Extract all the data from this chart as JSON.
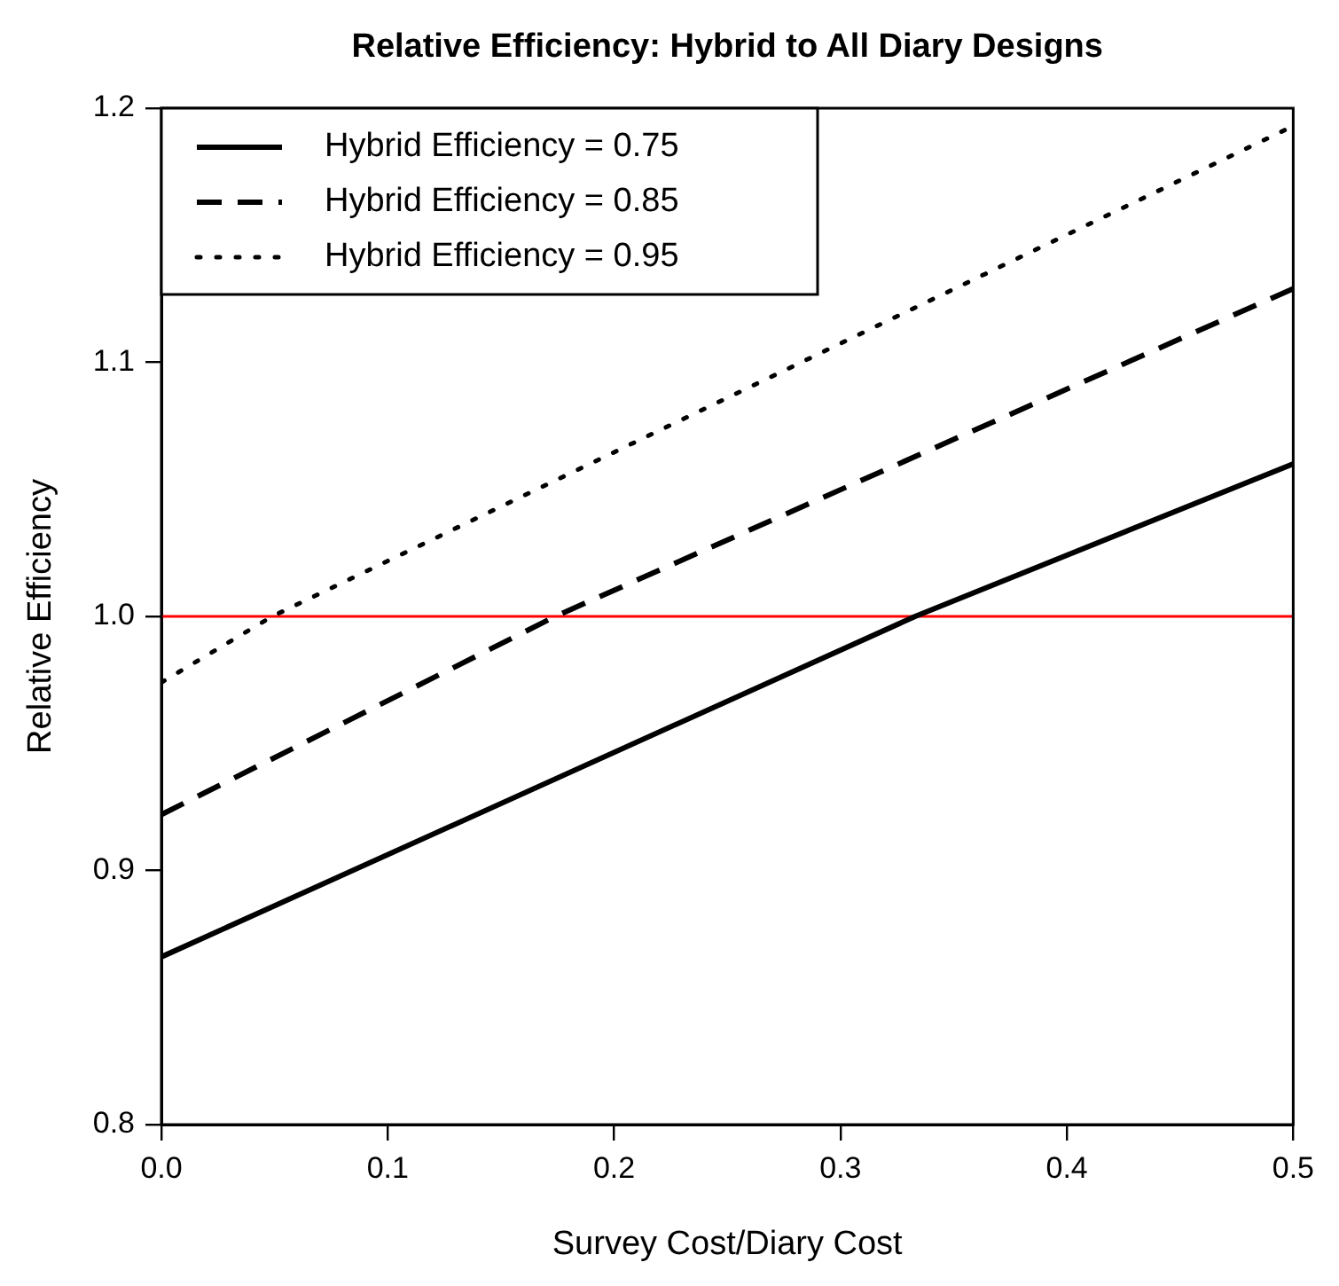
{
  "chart_data": {
    "type": "line",
    "title": "Relative Efficiency: Hybrid to All Diary Designs",
    "xlabel": "Survey Cost/Diary Cost",
    "ylabel": "Relative Efficiency",
    "series": [
      {
        "name": "Hybrid Efficiency = 0.75",
        "color": "#000000",
        "line_style": "solid",
        "x": [
          0,
          0.333,
          0.5
        ],
        "values": [
          0.866,
          1.0,
          1.06
        ]
      },
      {
        "name": "Hybrid Efficiency = 0.85",
        "color": "#000000",
        "line_style": "dashed",
        "x": [
          0,
          0.174,
          0.5
        ],
        "values": [
          0.922,
          1.0,
          1.129
        ]
      },
      {
        "name": "Hybrid Efficiency = 0.95",
        "color": "#000000",
        "line_style": "dotted",
        "x": [
          0,
          0.049,
          0.5
        ],
        "values": [
          0.974,
          1.0,
          1.193
        ]
      }
    ],
    "xlim": [
      0,
      0.5
    ],
    "xticks": [
      {
        "value": 0,
        "label": "0.0"
      },
      0.1,
      0.2,
      0.3,
      0.4,
      0.5
    ],
    "ylim": [
      0.8,
      1.2
    ],
    "yticks": [
      0.8,
      0.9,
      {
        "value": 1,
        "label": "1.0"
      },
      1.1,
      1.2
    ],
    "ref_lines": [
      {
        "axis": "y",
        "value": 1,
        "color": "#ff0000"
      }
    ],
    "grid": false,
    "legend": "top left",
    "marker": "none"
  }
}
